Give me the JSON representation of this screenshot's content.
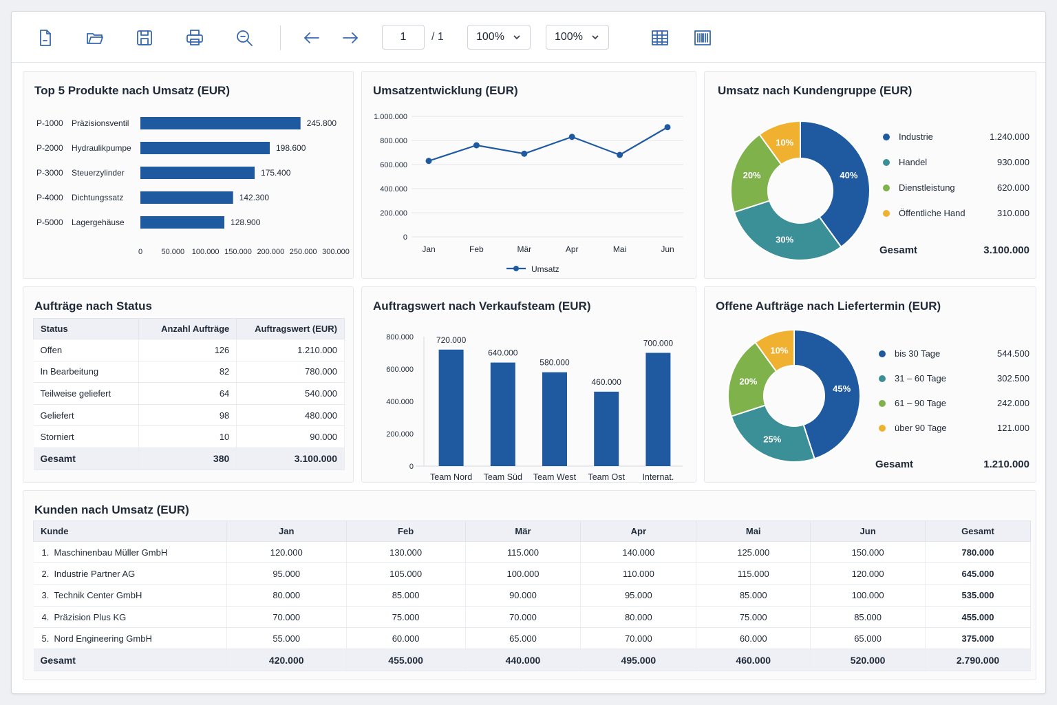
{
  "toolbar": {
    "icons": [
      "new-document-icon",
      "open-folder-icon",
      "save-icon",
      "print-icon",
      "search-icon",
      "arrow-left-icon",
      "arrow-right-icon",
      "grid-view-icon",
      "barcode-icon"
    ],
    "page_current": "1",
    "page_total": "/ 1",
    "zoom1": "100%",
    "zoom2": "100%"
  },
  "colors": {
    "primary": "#1f5aa0",
    "teal": "#3b8f96",
    "green": "#7fb24a",
    "amber": "#f0b030"
  },
  "top_products": {
    "title": "Top 5 Produkte nach Umsatz (EUR)",
    "chart_data": {
      "type": "bar",
      "orientation": "horizontal",
      "items": [
        {
          "code": "P-1000",
          "name": "Präzisionsventil",
          "value": 245800,
          "label": "245.800"
        },
        {
          "code": "P-2000",
          "name": "Hydraulikpumpe",
          "value": 198600,
          "label": "198.600"
        },
        {
          "code": "P-3000",
          "name": "Steuerzylinder",
          "value": 175400,
          "label": "175.400"
        },
        {
          "code": "P-4000",
          "name": "Dichtungssatz",
          "value": 142300,
          "label": "142.300"
        },
        {
          "code": "P-5000",
          "name": "Lagergehäuse",
          "value": 128900,
          "label": "128.900"
        }
      ],
      "xlim": [
        0,
        300000
      ],
      "xticks": [
        {
          "v": 0,
          "label": "0"
        },
        {
          "v": 50000,
          "label": "50.000"
        },
        {
          "v": 100000,
          "label": "100.000"
        },
        {
          "v": 150000,
          "label": "150.000"
        },
        {
          "v": 200000,
          "label": "200.000"
        },
        {
          "v": 250000,
          "label": "250.000"
        },
        {
          "v": 300000,
          "label": "300.000"
        }
      ]
    }
  },
  "revenue_trend": {
    "title": "Umsatzentwicklung (EUR)",
    "chart_data": {
      "type": "line",
      "categories": [
        "Jan",
        "Feb",
        "Mär",
        "Apr",
        "Mai",
        "Jun"
      ],
      "series": [
        {
          "name": "Umsatz",
          "values": [
            630000,
            760000,
            690000,
            830000,
            680000,
            910000
          ]
        }
      ],
      "ylim": [
        0,
        1000000
      ],
      "yticks": [
        {
          "v": 0,
          "label": "0"
        },
        {
          "v": 200000,
          "label": "200.000"
        },
        {
          "v": 400000,
          "label": "400.000"
        },
        {
          "v": 600000,
          "label": "600.000"
        },
        {
          "v": 800000,
          "label": "800.000"
        },
        {
          "v": 1000000,
          "label": "1.000.000"
        }
      ],
      "grid": true,
      "legend": "bottom"
    }
  },
  "customer_groups": {
    "title": "Umsatz nach Kundengruppe (EUR)",
    "chart_data": {
      "type": "pie",
      "donut": true,
      "slices": [
        {
          "name": "Industrie",
          "value": 1240000,
          "label": "1.240.000",
          "pct": "40%",
          "color": "#1f5aa0"
        },
        {
          "name": "Handel",
          "value": 930000,
          "label": "930.000",
          "pct": "30%",
          "color": "#3b8f96"
        },
        {
          "name": "Dienstleistung",
          "value": 620000,
          "label": "620.000",
          "pct": "20%",
          "color": "#7fb24a"
        },
        {
          "name": "Öffentliche Hand",
          "value": 310000,
          "label": "310.000",
          "pct": "10%",
          "color": "#f0b030"
        }
      ],
      "total_label": "Gesamt",
      "total": "3.100.000",
      "legend": "right"
    }
  },
  "orders_status": {
    "title": "Aufträge nach Status",
    "headers": [
      "Status",
      "Anzahl Aufträge",
      "Auftragswert (EUR)"
    ],
    "rows": [
      [
        "Offen",
        "126",
        "1.210.000"
      ],
      [
        "In Bearbeitung",
        "82",
        "780.000"
      ],
      [
        "Teilweise geliefert",
        "64",
        "540.000"
      ],
      [
        "Geliefert",
        "98",
        "480.000"
      ],
      [
        "Storniert",
        "10",
        "90.000"
      ]
    ],
    "total": [
      "Gesamt",
      "380",
      "3.100.000"
    ]
  },
  "sales_teams": {
    "title": "Auftragswert nach Verkaufsteam (EUR)",
    "chart_data": {
      "type": "bar",
      "categories": [
        "Team Nord",
        "Team Süd",
        "Team West",
        "Team Ost",
        "Internat."
      ],
      "values": [
        720000,
        640000,
        580000,
        460000,
        700000
      ],
      "labels": [
        "720.000",
        "640.000",
        "580.000",
        "460.000",
        "700.000"
      ],
      "ylim": [
        0,
        800000
      ],
      "yticks": [
        {
          "v": 0,
          "label": "0"
        },
        {
          "v": 200000,
          "label": "200.000"
        },
        {
          "v": 400000,
          "label": "400.000"
        },
        {
          "v": 600000,
          "label": "600.000"
        },
        {
          "v": 800000,
          "label": "800.000"
        }
      ]
    }
  },
  "open_orders": {
    "title": "Offene Aufträge nach Liefertermin (EUR)",
    "chart_data": {
      "type": "pie",
      "donut": true,
      "slices": [
        {
          "name": "bis 30 Tage",
          "value": 544500,
          "label": "544.500",
          "pct": "45%",
          "color": "#1f5aa0"
        },
        {
          "name": "31 – 60 Tage",
          "value": 302500,
          "label": "302.500",
          "pct": "25%",
          "color": "#3b8f96"
        },
        {
          "name": "61 – 90 Tage",
          "value": 242000,
          "label": "242.000",
          "pct": "20%",
          "color": "#7fb24a"
        },
        {
          "name": "über 90 Tage",
          "value": 121000,
          "label": "121.000",
          "pct": "10%",
          "color": "#f0b030"
        }
      ],
      "total_label": "Gesamt",
      "total": "1.210.000",
      "legend": "right"
    }
  },
  "customers": {
    "title": "Kunden nach Umsatz (EUR)",
    "headers": [
      "Kunde",
      "Jan",
      "Feb",
      "Mär",
      "Apr",
      "Mai",
      "Jun",
      "Gesamt"
    ],
    "rows": [
      [
        "1.",
        "Maschinenbau Müller GmbH",
        "120.000",
        "130.000",
        "115.000",
        "140.000",
        "125.000",
        "150.000",
        "780.000"
      ],
      [
        "2.",
        "Industrie Partner AG",
        "95.000",
        "105.000",
        "100.000",
        "110.000",
        "115.000",
        "120.000",
        "645.000"
      ],
      [
        "3.",
        "Technik Center GmbH",
        "80.000",
        "85.000",
        "90.000",
        "95.000",
        "85.000",
        "100.000",
        "535.000"
      ],
      [
        "4.",
        "Präzision Plus KG",
        "70.000",
        "75.000",
        "70.000",
        "80.000",
        "75.000",
        "85.000",
        "455.000"
      ],
      [
        "5.",
        "Nord Engineering GmbH",
        "55.000",
        "60.000",
        "65.000",
        "70.000",
        "60.000",
        "65.000",
        "375.000"
      ]
    ],
    "total": [
      "Gesamt",
      "420.000",
      "455.000",
      "440.000",
      "495.000",
      "460.000",
      "520.000",
      "2.790.000"
    ]
  }
}
